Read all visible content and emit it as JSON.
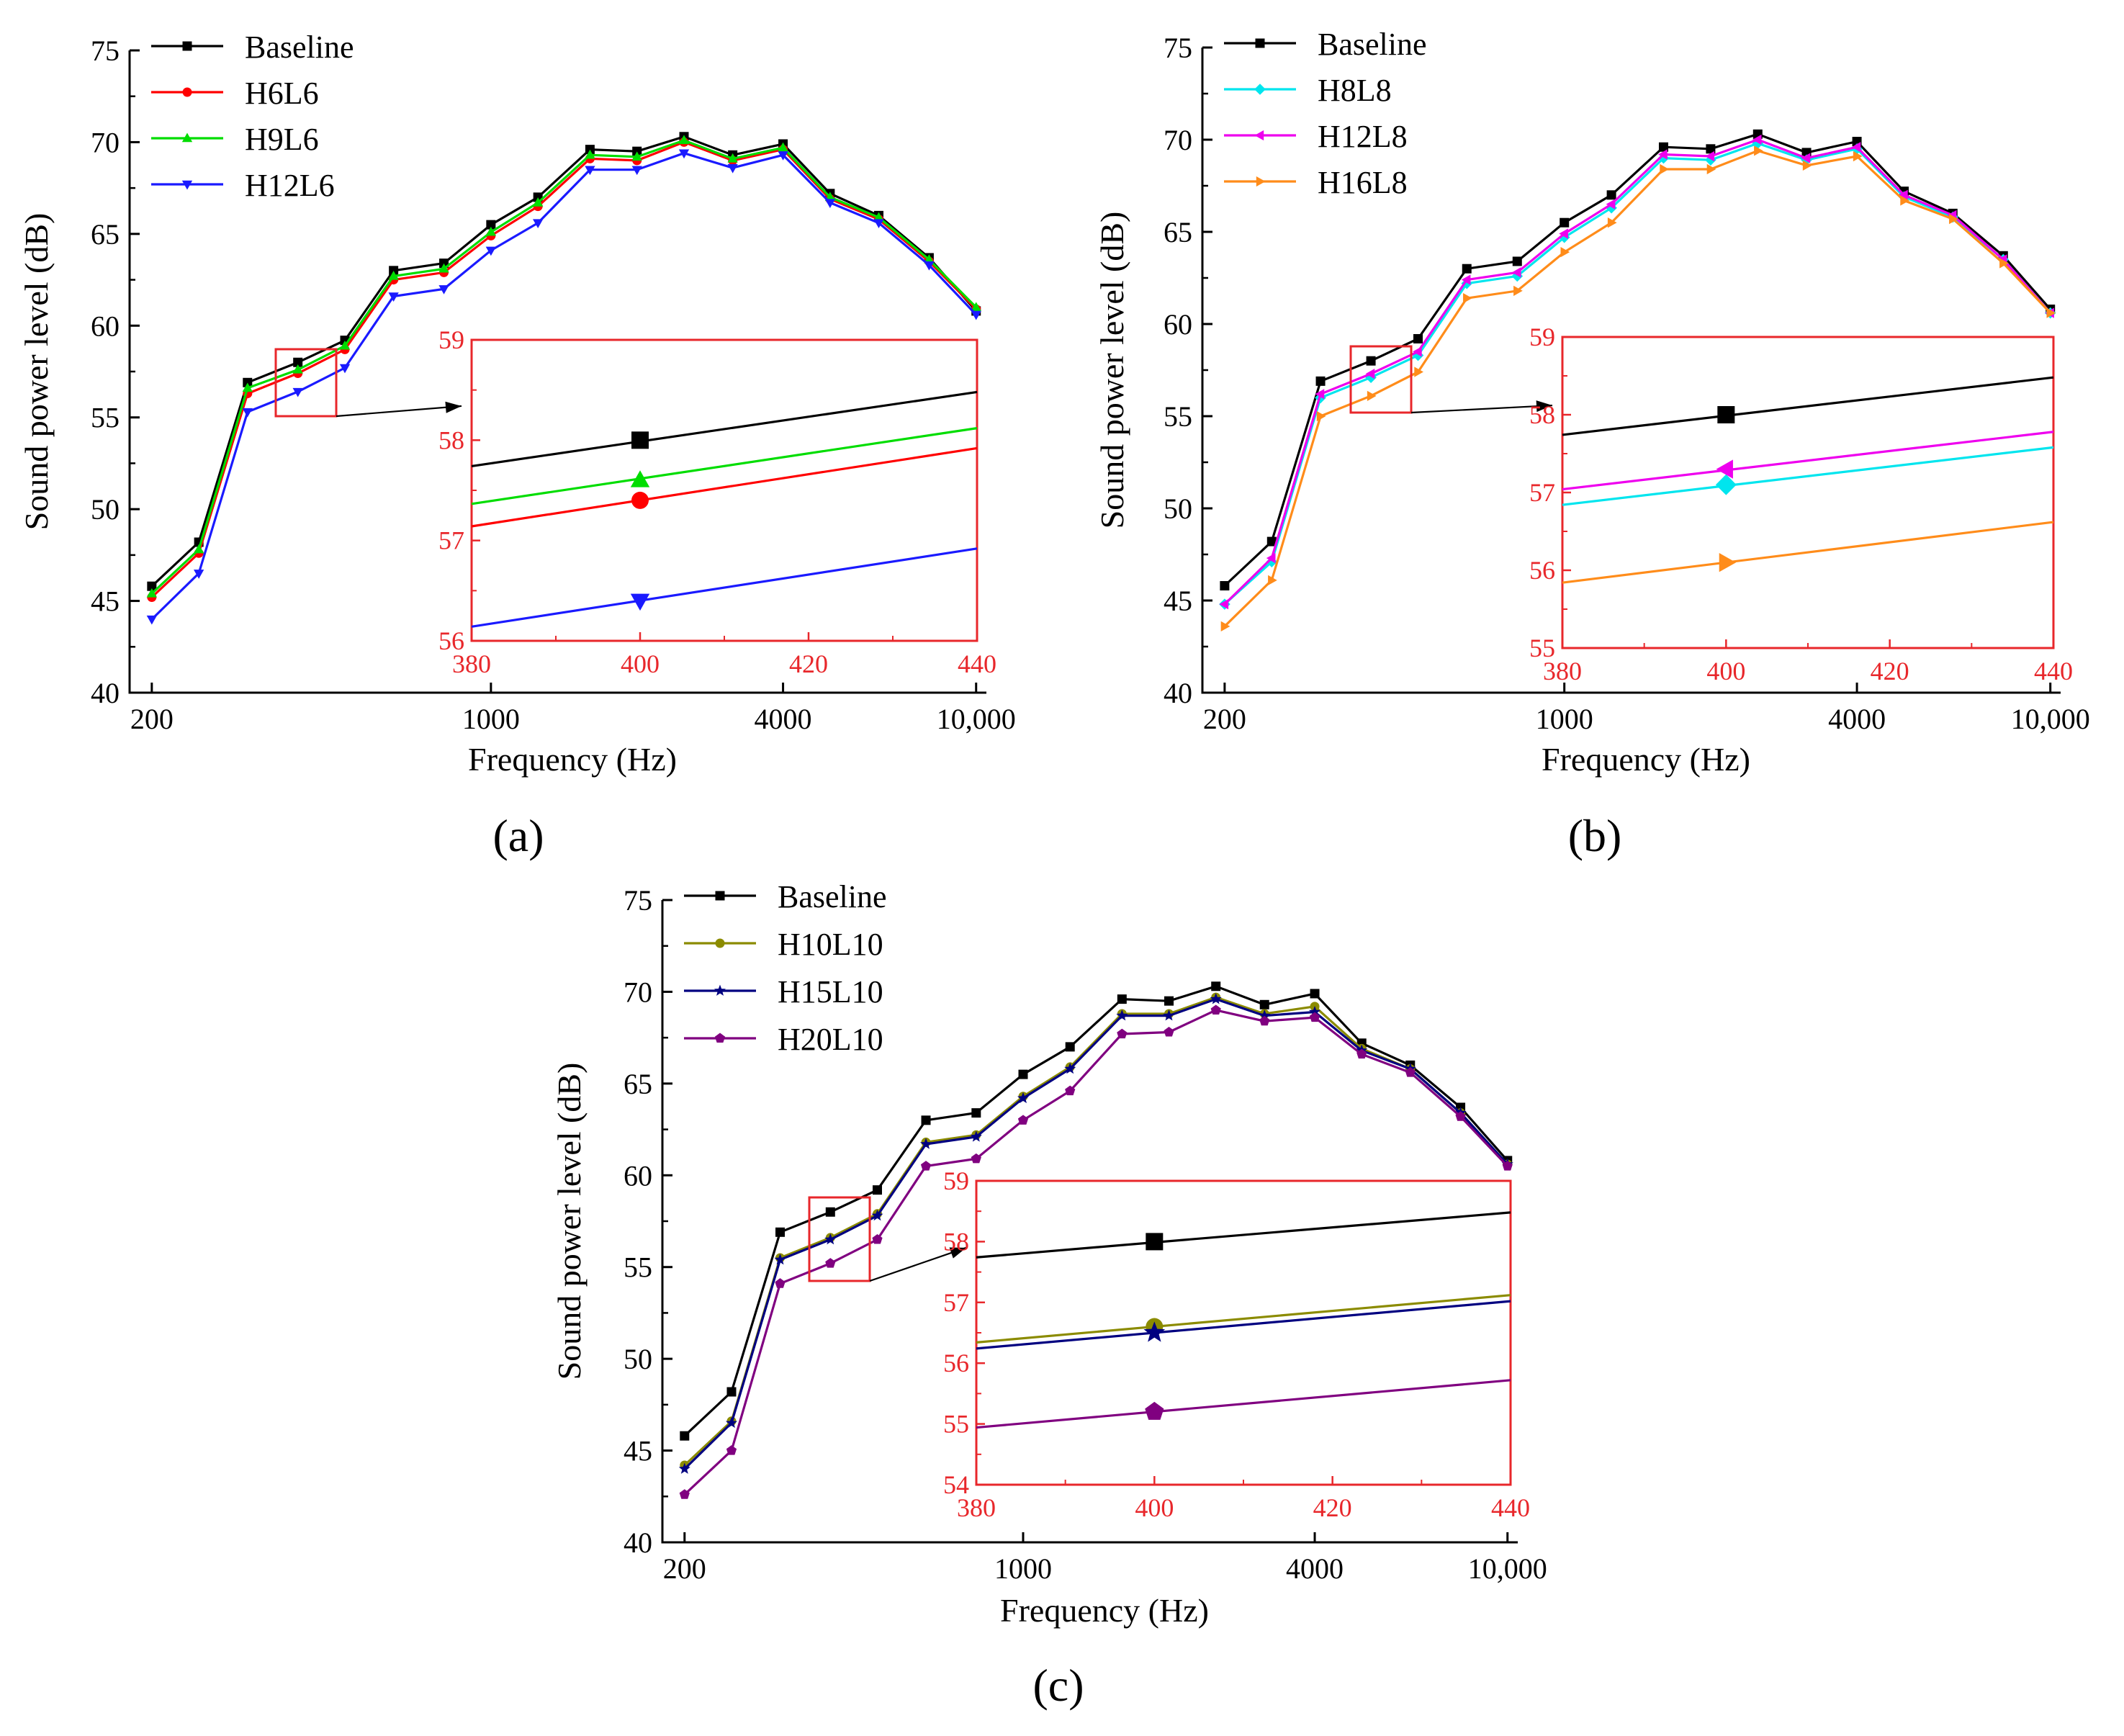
{
  "figure": {
    "panel_labels": [
      "(a)",
      "(b)",
      "(c)"
    ]
  },
  "chart_data": [
    {
      "type": "line",
      "panel_label": "(a)",
      "xlabel": "Frequency (Hz)",
      "ylabel": "Sound power level (dB)",
      "xscale": "log",
      "xlim": [
        180,
        10500
      ],
      "ylim": [
        40,
        75
      ],
      "xticks": [
        200,
        1000,
        4000,
        10000
      ],
      "xtick_labels": [
        "200",
        "1000",
        "4000",
        "10,000"
      ],
      "yticks": [
        40,
        45,
        50,
        55,
        60,
        65,
        70,
        75
      ],
      "ytick_labels": [
        "40",
        "45",
        "50",
        "55",
        "60",
        "65",
        "70",
        "75"
      ],
      "legend_position": "top-left",
      "x": [
        200,
        250,
        315,
        400,
        500,
        630,
        800,
        1000,
        1250,
        1600,
        2000,
        2500,
        3150,
        4000,
        5000,
        6300,
        8000,
        10000
      ],
      "series": [
        {
          "name": "Baseline",
          "color": "#000000",
          "marker": "square",
          "values": [
            45.8,
            48.2,
            56.9,
            58.0,
            59.2,
            63.0,
            63.4,
            65.5,
            67.0,
            69.6,
            69.5,
            70.3,
            69.3,
            69.9,
            67.2,
            66.0,
            63.7,
            60.8
          ]
        },
        {
          "name": "H6L6",
          "color": "#ff0000",
          "marker": "circle",
          "values": [
            45.2,
            47.6,
            56.3,
            57.4,
            58.7,
            62.5,
            62.9,
            64.9,
            66.5,
            69.1,
            69.0,
            70.0,
            69.0,
            69.6,
            66.9,
            65.8,
            63.5,
            60.9
          ]
        },
        {
          "name": "H9L6",
          "color": "#00dd00",
          "marker": "triangle-up",
          "values": [
            45.4,
            47.8,
            56.6,
            57.6,
            58.9,
            62.7,
            63.1,
            65.1,
            66.7,
            69.3,
            69.2,
            70.1,
            69.1,
            69.7,
            67.0,
            65.9,
            63.6,
            61.0
          ]
        },
        {
          "name": "H12L6",
          "color": "#1a1aff",
          "marker": "triangle-down",
          "values": [
            44.0,
            46.5,
            55.3,
            56.4,
            57.7,
            61.6,
            62.0,
            64.1,
            65.6,
            68.5,
            68.5,
            69.4,
            68.6,
            69.3,
            66.7,
            65.6,
            63.3,
            60.6
          ]
        }
      ],
      "inset": {
        "xlim": [
          380,
          440
        ],
        "ylim": [
          56,
          59
        ],
        "xticks": [
          380,
          400,
          420,
          440
        ],
        "xtick_labels": [
          "380",
          "400",
          "420",
          "440"
        ],
        "yticks": [
          56,
          57,
          58,
          59
        ],
        "ytick_labels": [
          "56",
          "57",
          "58",
          "59"
        ],
        "marker_x": 400
      }
    },
    {
      "type": "line",
      "panel_label": "(b)",
      "xlabel": "Frequency (Hz)",
      "ylabel": "Sound power level (dB)",
      "xscale": "log",
      "xlim": [
        180,
        10500
      ],
      "ylim": [
        40,
        75
      ],
      "xticks": [
        200,
        1000,
        4000,
        10000
      ],
      "xtick_labels": [
        "200",
        "1000",
        "4000",
        "10,000"
      ],
      "yticks": [
        40,
        45,
        50,
        55,
        60,
        65,
        70,
        75
      ],
      "ytick_labels": [
        "40",
        "45",
        "50",
        "55",
        "60",
        "65",
        "70",
        "75"
      ],
      "legend_position": "top-left",
      "x": [
        200,
        250,
        315,
        400,
        500,
        630,
        800,
        1000,
        1250,
        1600,
        2000,
        2500,
        3150,
        4000,
        5000,
        6300,
        8000,
        10000
      ],
      "series": [
        {
          "name": "Baseline",
          "color": "#000000",
          "marker": "square",
          "values": [
            45.8,
            48.2,
            56.9,
            58.0,
            59.2,
            63.0,
            63.4,
            65.5,
            67.0,
            69.6,
            69.5,
            70.3,
            69.3,
            69.9,
            67.2,
            66.0,
            63.7,
            60.8
          ]
        },
        {
          "name": "H8L8",
          "color": "#00e5ee",
          "marker": "diamond",
          "values": [
            44.8,
            47.1,
            56.0,
            57.1,
            58.3,
            62.2,
            62.6,
            64.7,
            66.3,
            69.0,
            68.9,
            69.8,
            68.9,
            69.5,
            66.9,
            65.8,
            63.5,
            60.6
          ]
        },
        {
          "name": "H12L8",
          "color": "#ee00ee",
          "marker": "triangle-left",
          "values": [
            44.8,
            47.3,
            56.2,
            57.3,
            58.5,
            62.4,
            62.8,
            64.9,
            66.5,
            69.2,
            69.1,
            70.0,
            69.0,
            69.6,
            67.0,
            65.9,
            63.5,
            60.6
          ]
        },
        {
          "name": "H16L8",
          "color": "#ff8c1a",
          "marker": "triangle-right",
          "values": [
            43.6,
            46.1,
            55.0,
            56.1,
            57.4,
            61.4,
            61.8,
            63.9,
            65.5,
            68.4,
            68.4,
            69.4,
            68.6,
            69.1,
            66.7,
            65.7,
            63.3,
            60.6
          ]
        }
      ],
      "inset": {
        "xlim": [
          380,
          440
        ],
        "ylim": [
          55,
          59
        ],
        "xticks": [
          380,
          400,
          420,
          440
        ],
        "xtick_labels": [
          "380",
          "400",
          "420",
          "440"
        ],
        "yticks": [
          55,
          56,
          57,
          58,
          59
        ],
        "ytick_labels": [
          "55",
          "56",
          "57",
          "58",
          "59"
        ],
        "marker_x": 400
      }
    },
    {
      "type": "line",
      "panel_label": "(c)",
      "xlabel": "Frequency (Hz)",
      "ylabel": "Sound power level (dB)",
      "xscale": "log",
      "xlim": [
        180,
        10500
      ],
      "ylim": [
        40,
        75
      ],
      "xticks": [
        200,
        1000,
        4000,
        10000
      ],
      "xtick_labels": [
        "200",
        "1000",
        "4000",
        "10,000"
      ],
      "yticks": [
        40,
        45,
        50,
        55,
        60,
        65,
        70,
        75
      ],
      "ytick_labels": [
        "40",
        "45",
        "50",
        "55",
        "60",
        "65",
        "70",
        "75"
      ],
      "legend_position": "top-left",
      "x": [
        200,
        250,
        315,
        400,
        500,
        630,
        800,
        1000,
        1250,
        1600,
        2000,
        2500,
        3150,
        4000,
        5000,
        6300,
        8000,
        10000
      ],
      "series": [
        {
          "name": "Baseline",
          "color": "#000000",
          "marker": "square",
          "values": [
            45.8,
            48.2,
            56.9,
            58.0,
            59.2,
            63.0,
            63.4,
            65.5,
            67.0,
            69.6,
            69.5,
            70.3,
            69.3,
            69.9,
            67.2,
            66.0,
            63.7,
            60.8
          ]
        },
        {
          "name": "H10L10",
          "color": "#8b8b00",
          "marker": "circle",
          "values": [
            44.2,
            46.6,
            55.5,
            56.6,
            57.9,
            61.8,
            62.2,
            64.3,
            65.9,
            68.8,
            68.8,
            69.7,
            68.8,
            69.2,
            66.9,
            65.8,
            63.4,
            60.6
          ]
        },
        {
          "name": "H15L10",
          "color": "#000080",
          "marker": "star",
          "values": [
            44.0,
            46.5,
            55.4,
            56.5,
            57.8,
            61.7,
            62.1,
            64.2,
            65.8,
            68.7,
            68.7,
            69.6,
            68.7,
            68.9,
            66.8,
            65.8,
            63.4,
            60.6
          ]
        },
        {
          "name": "H20L10",
          "color": "#800080",
          "marker": "pentagon",
          "values": [
            42.6,
            45.0,
            54.1,
            55.2,
            56.5,
            60.5,
            60.9,
            63.0,
            64.6,
            67.7,
            67.8,
            69.0,
            68.4,
            68.6,
            66.6,
            65.6,
            63.2,
            60.5
          ]
        }
      ],
      "inset": {
        "xlim": [
          380,
          440
        ],
        "ylim": [
          54,
          59
        ],
        "xticks": [
          380,
          400,
          420,
          440
        ],
        "xtick_labels": [
          "380",
          "400",
          "420",
          "440"
        ],
        "yticks": [
          54,
          55,
          56,
          57,
          58,
          59
        ],
        "ytick_labels": [
          "54",
          "55",
          "56",
          "57",
          "58",
          "59"
        ],
        "marker_x": 400
      }
    }
  ]
}
